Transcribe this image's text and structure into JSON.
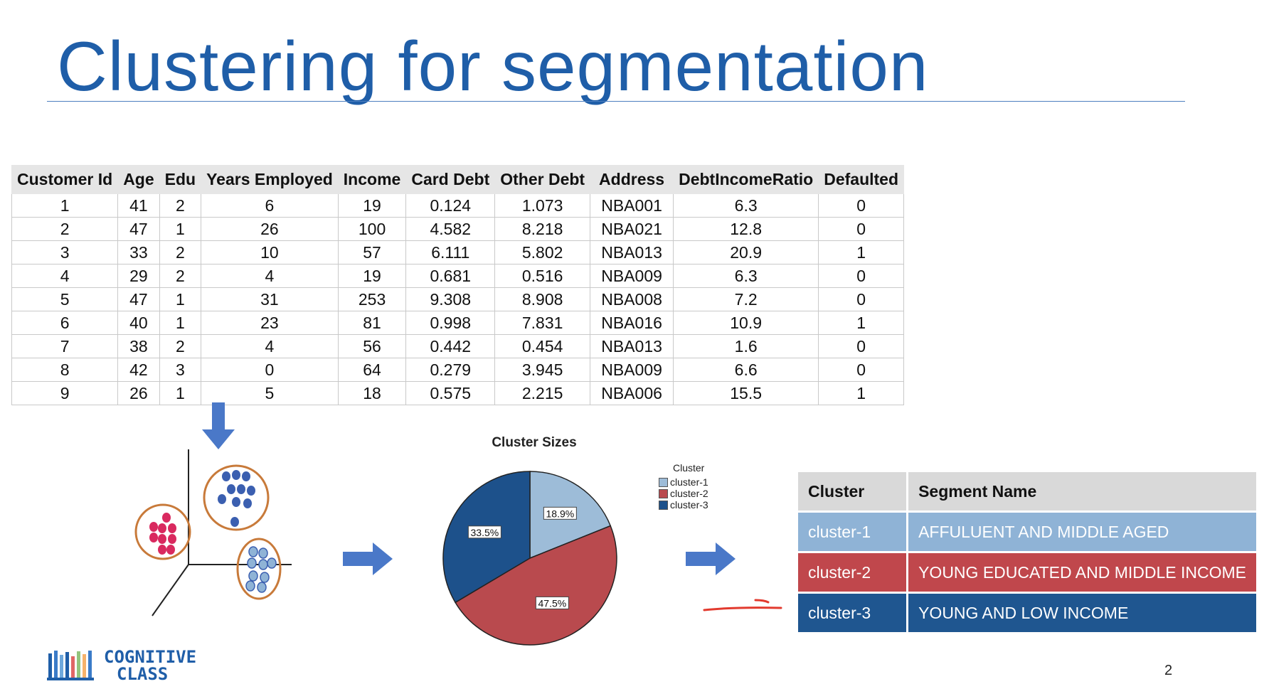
{
  "title": "Clustering for segmentation",
  "data_table": {
    "headers": [
      "Customer Id",
      "Age",
      "Edu",
      "Years Employed",
      "Income",
      "Card Debt",
      "Other Debt",
      "Address",
      "DebtIncomeRatio",
      "Defaulted"
    ],
    "rows": [
      [
        "1",
        "41",
        "2",
        "6",
        "19",
        "0.124",
        "1.073",
        "NBA001",
        "6.3",
        "0"
      ],
      [
        "2",
        "47",
        "1",
        "26",
        "100",
        "4.582",
        "8.218",
        "NBA021",
        "12.8",
        "0"
      ],
      [
        "3",
        "33",
        "2",
        "10",
        "57",
        "6.111",
        "5.802",
        "NBA013",
        "20.9",
        "1"
      ],
      [
        "4",
        "29",
        "2",
        "4",
        "19",
        "0.681",
        "0.516",
        "NBA009",
        "6.3",
        "0"
      ],
      [
        "5",
        "47",
        "1",
        "31",
        "253",
        "9.308",
        "8.908",
        "NBA008",
        "7.2",
        "0"
      ],
      [
        "6",
        "40",
        "1",
        "23",
        "81",
        "0.998",
        "7.831",
        "NBA016",
        "10.9",
        "1"
      ],
      [
        "7",
        "38",
        "2",
        "4",
        "56",
        "0.442",
        "0.454",
        "NBA013",
        "1.6",
        "0"
      ],
      [
        "8",
        "42",
        "3",
        "0",
        "64",
        "0.279",
        "3.945",
        "NBA009",
        "6.6",
        "0"
      ],
      [
        "9",
        "26",
        "1",
        "5",
        "18",
        "0.575",
        "2.215",
        "NBA006",
        "15.5",
        "1"
      ]
    ]
  },
  "chart_data": {
    "type": "pie",
    "title": "Cluster Sizes",
    "legend_title": "Cluster",
    "legend_position": "right",
    "slices": [
      {
        "label": "cluster-1",
        "value": 18.9,
        "display": "18.9%",
        "color": "#9dbcd8"
      },
      {
        "label": "cluster-2",
        "value": 47.5,
        "display": "47.5%",
        "color": "#b94a4e"
      },
      {
        "label": "cluster-3",
        "value": 33.5,
        "display": "33.5%",
        "color": "#1d518b"
      }
    ]
  },
  "segment_table": {
    "headers": [
      "Cluster",
      "Segment Name"
    ],
    "rows": [
      {
        "cluster": "cluster-1",
        "name": "AFFULUENT AND MIDDLE AGED",
        "color": "#8fb3d6"
      },
      {
        "cluster": "cluster-2",
        "name": "YOUNG EDUCATED AND MIDDLE INCOME",
        "color": "#c0474c"
      },
      {
        "cluster": "cluster-3",
        "name": "YOUNG AND LOW INCOME",
        "color": "#1f5690"
      }
    ]
  },
  "colors": {
    "title": "#1f5ea8",
    "arrow": "#4a78c8",
    "cluster_red": "#d9295f",
    "cluster_blue": "#3b5fb0",
    "cluster_light": "#8fb3d6",
    "circle_outline": "#c87a3a",
    "annotation": "#e23a2e"
  },
  "logo": {
    "line1": "COGNITIVE",
    "line2": "CLASS"
  },
  "slide_number": "2"
}
